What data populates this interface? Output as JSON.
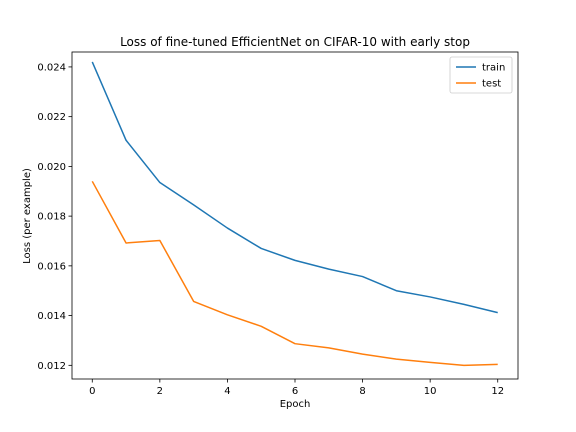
{
  "chart_data": {
    "type": "line",
    "title": "Loss of fine-tuned EfficientNet on CIFAR-10 with early stop",
    "xlabel": "Epoch",
    "ylabel": "Loss (per example)",
    "x": [
      0,
      1,
      2,
      3,
      4,
      5,
      6,
      7,
      8,
      9,
      10,
      11,
      12
    ],
    "xlim": [
      -0.6,
      12.6
    ],
    "ylim": [
      0.01145,
      0.0246
    ],
    "xticks": [
      0,
      2,
      4,
      6,
      8,
      10,
      12
    ],
    "yticks": [
      0.012,
      0.014,
      0.016,
      0.018,
      0.02,
      0.022,
      0.024
    ],
    "xtick_labels": [
      "0",
      "2",
      "4",
      "6",
      "8",
      "10",
      "12"
    ],
    "ytick_labels": [
      "0.012",
      "0.014",
      "0.016",
      "0.018",
      "0.020",
      "0.022",
      "0.024"
    ],
    "grid": false,
    "legend_position": "top-right",
    "series": [
      {
        "name": "train",
        "color": "#1f77b4",
        "values": [
          0.0242,
          0.02105,
          0.01935,
          0.01845,
          0.01752,
          0.0167,
          0.01622,
          0.01587,
          0.01557,
          0.015,
          0.01475,
          0.01445,
          0.01412
        ]
      },
      {
        "name": "test",
        "color": "#ff7f0e",
        "values": [
          0.0194,
          0.01692,
          0.01702,
          0.01457,
          0.01403,
          0.01357,
          0.01287,
          0.0127,
          0.01245,
          0.01225,
          0.01212,
          0.012,
          0.01204
        ]
      }
    ]
  }
}
